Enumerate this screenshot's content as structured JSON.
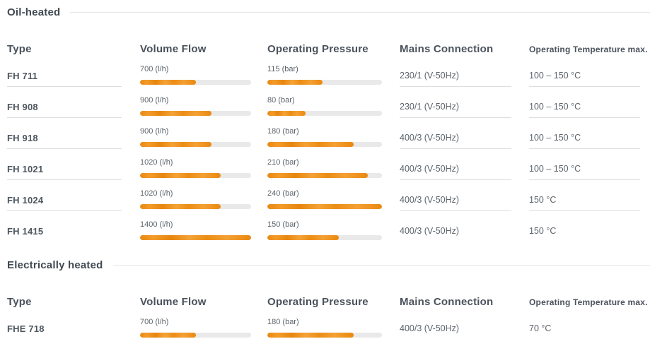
{
  "columns": {
    "type": "Type",
    "volume_flow": "Volume Flow",
    "operating_pressure": "Operating Pressure",
    "mains_connection": "Mains Connection",
    "operating_temperature": "Operating Temperature max."
  },
  "colors": {
    "bar_fill_orange": "#ee8e11",
    "bar_track_gray": "#e9e9e9",
    "divider_gray": "#dcdfe1",
    "heading_dark": "#414a52"
  },
  "bar_scales": {
    "volume_flow_max_lh": 1400,
    "operating_pressure_max_bar": 240
  },
  "sections": [
    {
      "title": "Oil-heated",
      "rows": [
        {
          "type": "FH 711",
          "volume_flow": {
            "label": "700 (l/h)",
            "percent": 50
          },
          "operating_pressure": {
            "label": "115 (bar)",
            "percent": 47.9
          },
          "mains_connection": "230/1 (V-50Hz)",
          "operating_temperature": "100 – 150 °C"
        },
        {
          "type": "FH 908",
          "volume_flow": {
            "label": "900 (l/h)",
            "percent": 64.3
          },
          "operating_pressure": {
            "label": "80 (bar)",
            "percent": 33.3
          },
          "mains_connection": "230/1 (V-50Hz)",
          "operating_temperature": "100 – 150 °C"
        },
        {
          "type": "FH 918",
          "volume_flow": {
            "label": "900 (l/h)",
            "percent": 64.3
          },
          "operating_pressure": {
            "label": "180 (bar)",
            "percent": 75
          },
          "mains_connection": "400/3 (V-50Hz)",
          "operating_temperature": "100 – 150 °C"
        },
        {
          "type": "FH 1021",
          "volume_flow": {
            "label": "1020 (l/h)",
            "percent": 72.9
          },
          "operating_pressure": {
            "label": "210 (bar)",
            "percent": 87.5
          },
          "mains_connection": "400/3 (V-50Hz)",
          "operating_temperature": "100 – 150 °C"
        },
        {
          "type": "FH 1024",
          "volume_flow": {
            "label": "1020 (l/h)",
            "percent": 72.9
          },
          "operating_pressure": {
            "label": "240 (bar)",
            "percent": 100
          },
          "mains_connection": "400/3 (V-50Hz)",
          "operating_temperature": "150 °C"
        },
        {
          "type": "FH 1415",
          "volume_flow": {
            "label": "1400 (l/h)",
            "percent": 100
          },
          "operating_pressure": {
            "label": "150 (bar)",
            "percent": 62.5
          },
          "mains_connection": "400/3 (V-50Hz)",
          "operating_temperature": "150 °C"
        }
      ]
    },
    {
      "title": "Electrically heated",
      "rows": [
        {
          "type": "FHE 718",
          "volume_flow": {
            "label": "700 (l/h)",
            "percent": 50
          },
          "operating_pressure": {
            "label": "180 (bar)",
            "percent": 75
          },
          "mains_connection": "400/3 (V-50Hz)",
          "operating_temperature": "70 °C"
        }
      ]
    }
  ]
}
